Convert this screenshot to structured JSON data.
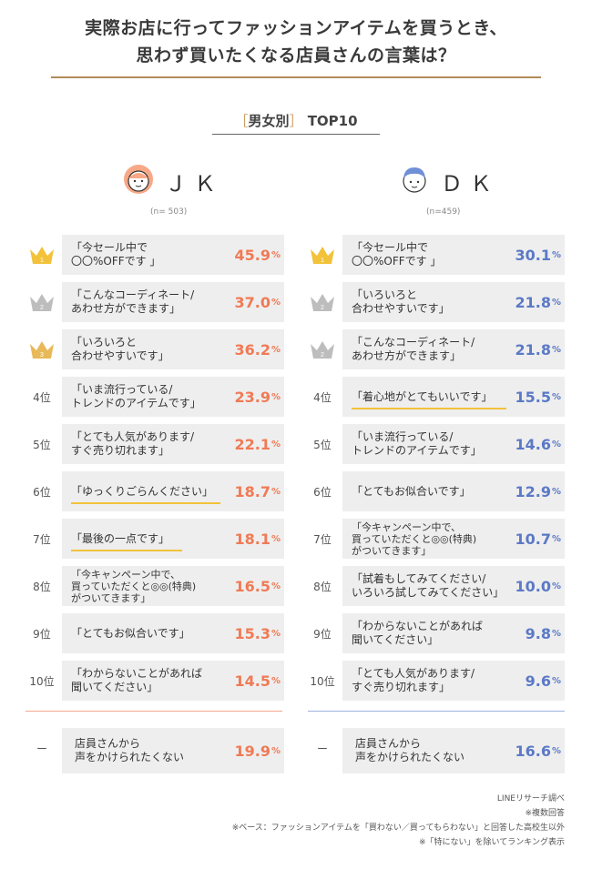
{
  "title": {
    "line1": "実際お店に行ってファッションアイテムを買うとき、",
    "line2": "思わず買いたくなる店員さんの言葉は？"
  },
  "subtitle": {
    "open": "［",
    "text": "男女別",
    "close": "］",
    "rank": "TOP10"
  },
  "colors": {
    "jk": "#f07a55",
    "dk": "#5b79c6",
    "gold": "#f2c23a",
    "silver": "#bdbdbd",
    "bronze": "#e8b958",
    "underline": "#f2c23a"
  },
  "chart_data": [
    {
      "type": "bar",
      "label": "ＪＫ",
      "n": "(n= 503)",
      "unit": "%",
      "categories": [
        "「今セール中で\n〇〇%OFFです 」",
        "「こんなコーディネート/\nあわせ方ができます」",
        "「いろいろと\n合わせやすいです」",
        "「いま流行っている/\nトレンドのアイテムです」",
        "「とても人気があります/\nすぐ売り切れます」",
        "「ゆっくりごらんください」",
        "「最後の一点です」",
        "「今キャンペーン中で、\n買っていただくと◎◎(特典)\nがついてきます」",
        "「とてもお似合いです」",
        "「わからないことがあれば\n聞いてください」"
      ],
      "values": [
        45.9,
        37.0,
        36.2,
        23.9,
        22.1,
        18.7,
        18.1,
        16.5,
        15.3,
        14.5
      ],
      "labels": [
        "45.9",
        "37.0",
        "36.2",
        "23.9",
        "22.1",
        "18.7",
        "18.1",
        "16.5",
        "15.3",
        "14.5"
      ],
      "ranks": [
        "crown-1",
        "crown-2",
        "crown-3",
        "4位",
        "5位",
        "6位",
        "7位",
        "8位",
        "9位",
        "10位"
      ],
      "highlighted": [
        false,
        false,
        false,
        false,
        false,
        true,
        true,
        false,
        false,
        false
      ],
      "extra": {
        "rank": "ー",
        "category": "店員さんから\n声をかけられたくない",
        "value": 19.9,
        "label": "19.9"
      }
    },
    {
      "type": "bar",
      "label": "ＤＫ",
      "n": "(n=459)",
      "unit": "%",
      "categories": [
        "「今セール中で\n〇〇%OFFです 」",
        "「いろいろと\n合わせやすいです」",
        "「こんなコーディネート/\nあわせ方ができます」",
        "「着心地がとてもいいです」",
        "「いま流行っている/\nトレンドのアイテムです」",
        "「とてもお似合いです」",
        "「今キャンペーン中で、\n買っていただくと◎◎(特典)\nがついてきます」",
        "「試着もしてみてください/\nいろいろ試してみてください」",
        "「わからないことがあれば\n聞いてください」",
        "「とても人気があります/\nすぐ売り切れます」"
      ],
      "values": [
        30.1,
        21.8,
        21.8,
        15.5,
        14.6,
        12.9,
        10.7,
        10.0,
        9.8,
        9.6
      ],
      "labels": [
        "30.1",
        "21.8",
        "21.8",
        "15.5",
        "14.6",
        "12.9",
        "10.7",
        "10.0",
        "9.8",
        "9.6"
      ],
      "ranks": [
        "crown-1",
        "crown-2",
        "crown-2",
        "4位",
        "5位",
        "6位",
        "7位",
        "8位",
        "9位",
        "10位"
      ],
      "highlighted": [
        false,
        false,
        false,
        true,
        false,
        false,
        false,
        false,
        false,
        false
      ],
      "extra": {
        "rank": "ー",
        "category": "店員さんから\n声をかけられたくない",
        "value": 16.6,
        "label": "16.6"
      }
    }
  ],
  "notes": [
    "LINEリサーチ調べ",
    "※複数回答",
    "※ベース：ファッションアイテムを「買わない／買ってもらわない」と回答した高校生以外",
    "※「特にない」を除いてランキング表示"
  ]
}
